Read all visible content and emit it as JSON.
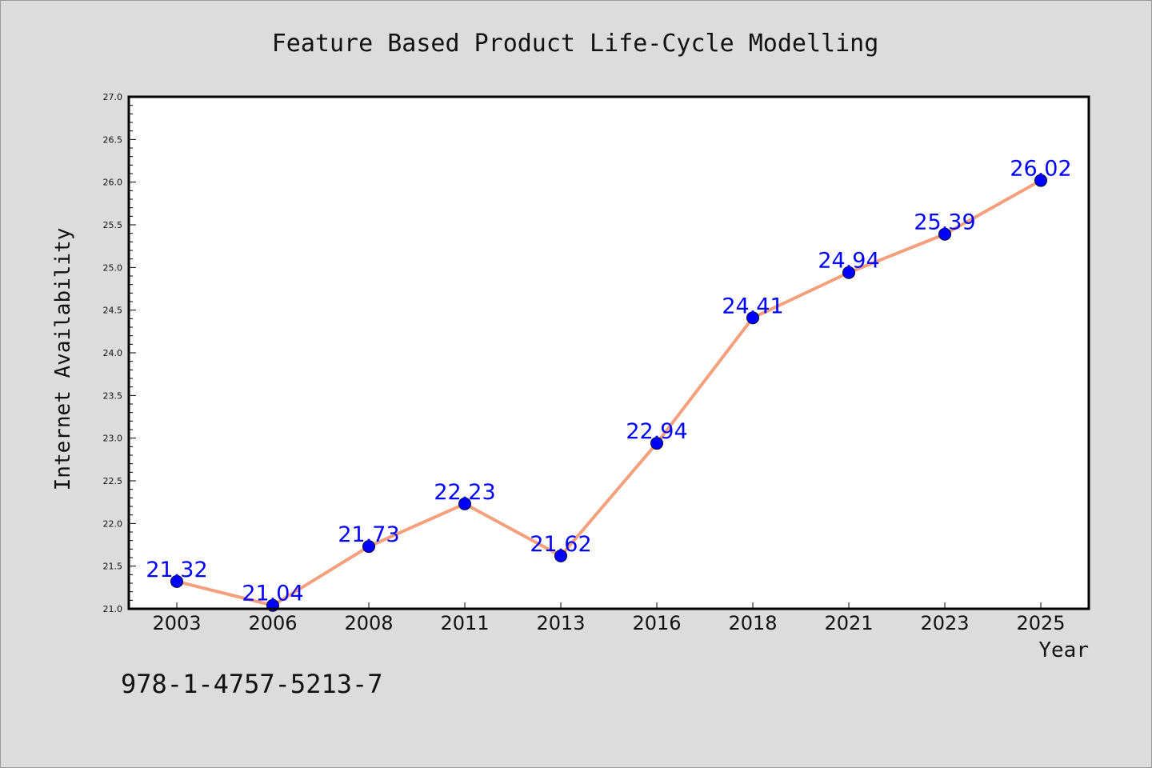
{
  "chart_data": {
    "type": "line",
    "title": "Feature Based Product Life-Cycle Modelling",
    "xlabel": "Year",
    "ylabel": "Internet Availability",
    "categories": [
      "2003",
      "2006",
      "2008",
      "2011",
      "2013",
      "2016",
      "2018",
      "2021",
      "2023",
      "2025"
    ],
    "series": [
      {
        "values": [
          21.32,
          21.04,
          21.73,
          22.23,
          21.62,
          22.94,
          24.41,
          24.94,
          25.39,
          26.02
        ]
      }
    ],
    "ylim": [
      21.0,
      27.0
    ],
    "yticks": [
      "21.0",
      "21.5",
      "22.0",
      "22.5",
      "23.0",
      "23.5",
      "24.0",
      "24.5",
      "25.0",
      "25.5",
      "26.0",
      "26.5",
      "27.0"
    ],
    "data_labels": [
      "21.32",
      "21.04",
      "21.73",
      "22.23",
      "21.62",
      "22.94",
      "24.41",
      "24.94",
      "25.39",
      "26.02"
    ],
    "grid": false,
    "line_color": "#f4a07c",
    "marker_color": "#0000ff",
    "label_color": "#0000ff"
  },
  "footnote": "978-1-4757-5213-7"
}
